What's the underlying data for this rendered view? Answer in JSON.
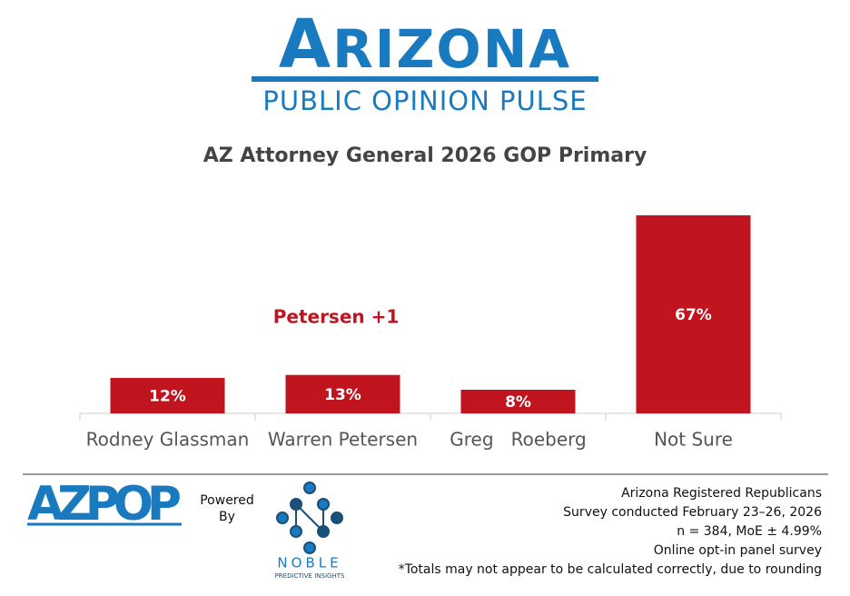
{
  "header": {
    "brand": "ARIZONA",
    "subtitle": "PUBLIC OPINION PULSE"
  },
  "chart_data": {
    "type": "bar",
    "title": "AZ Attorney General 2026 GOP Primary",
    "categories": [
      "Rodney Glassman",
      "Warren Petersen",
      "Greg   Roeberg",
      "Not Sure"
    ],
    "values": [
      12,
      13,
      8,
      67
    ],
    "value_labels": [
      "12%",
      "13%",
      "8%",
      "67%"
    ],
    "color": "#c0141f",
    "annotation": "Petersen +1"
  },
  "footer": {
    "logo": "AZPOP",
    "powered": [
      "Powered",
      "By"
    ],
    "partner": "NOBLE",
    "partner_tagline": "PREDICTIVE INSIGHTS",
    "notes": [
      "Arizona Registered Republicans",
      "Survey conducted February 23–26, 2026",
      "n = 384, MoE ± 4.99%",
      "Online opt-in panel survey",
      "*Totals may not appear to be calculated correctly, due to rounding"
    ]
  }
}
